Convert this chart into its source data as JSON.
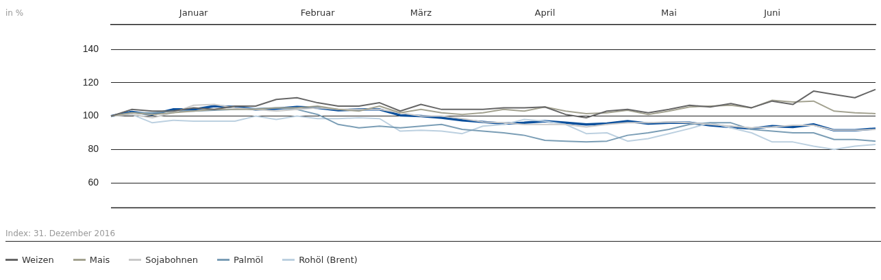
{
  "chart_data": {
    "type": "line",
    "annotations": [
      "in %",
      "Index: 31. Dezember 2016"
    ],
    "categories": [
      null,
      null,
      null,
      null,
      "Januar",
      null,
      null,
      null,
      null,
      null,
      "Februar",
      null,
      null,
      null,
      null,
      "März",
      null,
      null,
      null,
      null,
      null,
      "April",
      null,
      null,
      null,
      null,
      null,
      "Mai",
      null,
      null,
      null,
      null,
      "Juni",
      null,
      null,
      null,
      null,
      null
    ],
    "ylim": [
      45,
      155
    ],
    "yticks": [
      60,
      80,
      100,
      120,
      140
    ],
    "grid": "y",
    "legend": "bottom left",
    "series": [
      {
        "name": "Weizen",
        "color": "#666666",
        "values": [
          100,
          104,
          103,
          103,
          105,
          104,
          106,
          106,
          110,
          111,
          108,
          106,
          106,
          108,
          103,
          107,
          104,
          104,
          104,
          105,
          105,
          105.5,
          101,
          99,
          103,
          104,
          102,
          104,
          106.5,
          105.5,
          107.5,
          105,
          109,
          107,
          115,
          113,
          111,
          116
        ]
      },
      {
        "name": "Mais",
        "color": "#a3a290",
        "values": [
          100,
          102,
          101,
          102,
          103,
          104,
          104,
          104,
          105,
          105,
          106,
          104,
          103,
          106,
          102,
          104,
          102,
          101,
          102,
          104,
          103,
          105.5,
          103,
          101.5,
          102,
          103.5,
          101,
          103,
          105.5,
          106,
          106.5,
          105,
          109.5,
          108.5,
          109,
          103,
          102,
          101.5
        ]
      },
      {
        "name": "Sojabohnen",
        "color": "#c9c9c9",
        "values": [
          100,
          101,
          99,
          102,
          106.5,
          107,
          105,
          104,
          103,
          104,
          105,
          104,
          104,
          104,
          102,
          100,
          100,
          98.5,
          96.5,
          96,
          95,
          95,
          95,
          93.5,
          95,
          96,
          96,
          96.5,
          96,
          95,
          94,
          93,
          93.5,
          94.5,
          94.5,
          91.5,
          91.5,
          92
        ]
      },
      {
        "name": "Palmöl",
        "color": "#7a9db5",
        "values": [
          100,
          102,
          102,
          103,
          103,
          103.5,
          104,
          104.5,
          105,
          104,
          101,
          95,
          93,
          94,
          93,
          94,
          95,
          92,
          91,
          90,
          88.5,
          85.5,
          85,
          84.5,
          85,
          88.5,
          90,
          92,
          95,
          96,
          96,
          92,
          91,
          90,
          90,
          86,
          86,
          85
        ]
      },
      {
        "name": "Rohöl (Brent)",
        "color": "#bcd0e0",
        "values": [
          100,
          101,
          96,
          97.5,
          97,
          97,
          97,
          100,
          98,
          100,
          98.5,
          98.5,
          99,
          98.5,
          91,
          91.5,
          91,
          89.5,
          94,
          95,
          98,
          97,
          95,
          89.5,
          90,
          85,
          86.5,
          89.5,
          92.5,
          96,
          93,
          90,
          84.5,
          84.5,
          82,
          80,
          82,
          83
        ]
      },
      {
        "color": "#0a4f9c",
        "values": [
          100,
          102.5,
          101,
          104,
          104,
          106,
          105.5,
          104,
          104.5,
          105.5,
          105,
          103.5,
          104,
          104,
          100.5,
          100,
          99,
          97.5,
          96.5,
          95.5,
          96,
          97,
          96,
          95,
          95.5,
          97,
          95.5,
          96,
          96,
          94.5,
          93.5,
          92.5,
          94,
          93.5,
          95,
          91.5,
          91.5,
          92.5
        ]
      }
    ]
  }
}
